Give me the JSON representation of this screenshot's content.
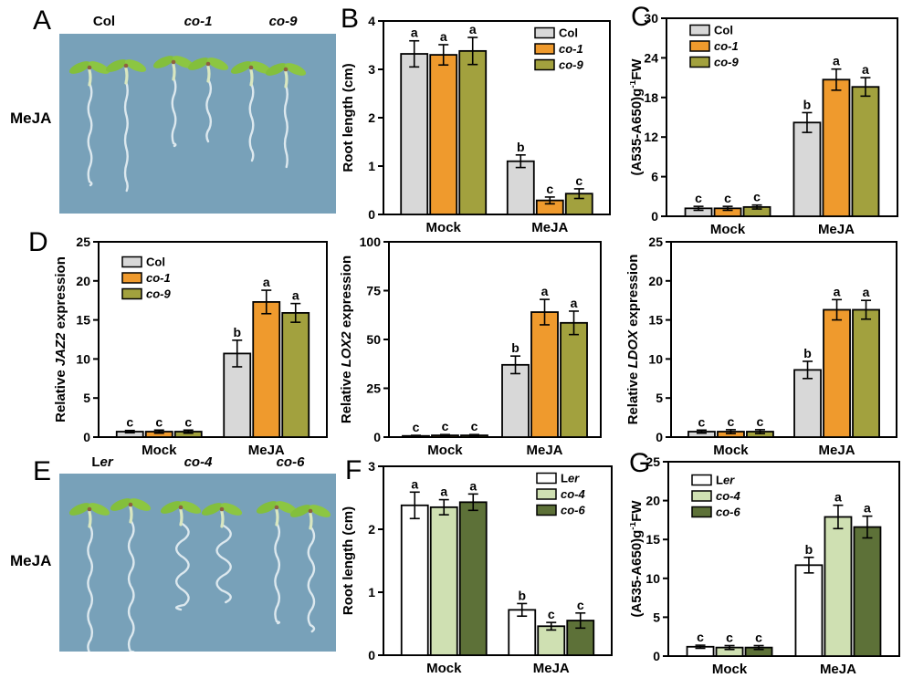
{
  "panels": {
    "A": {
      "letter": "A",
      "treatment": "MeJA",
      "genotypes": [
        [
          {
            "t": "Col"
          }
        ],
        [
          {
            "t": "co-1",
            "i": true
          }
        ],
        [
          {
            "t": "co-9",
            "i": true
          }
        ]
      ]
    },
    "B": {
      "letter": "B"
    },
    "C": {
      "letter": "C"
    },
    "D": {
      "letter": "D"
    },
    "E": {
      "letter": "E",
      "treatment": "MeJA",
      "genotypes": [
        [
          {
            "t": "L"
          },
          {
            "t": "er",
            "i": true
          }
        ],
        [
          {
            "t": "co-4",
            "i": true
          }
        ],
        [
          {
            "t": "co-6",
            "i": true
          }
        ]
      ]
    },
    "F": {
      "letter": "F"
    },
    "G": {
      "letter": "G"
    }
  },
  "colors": {
    "col": "#d8d8d8",
    "co1": "#ef9a2d",
    "co9": "#a2a13e",
    "ler": "#ffffff",
    "co4": "#cfe0b2",
    "co6": "#5d7138",
    "photo_bg": "#78a1b9",
    "axis": "#000000"
  },
  "chart_data": [
    {
      "id": "B",
      "type": "bar",
      "ylabel_text": "Root length (cm)",
      "ylabel_parts": [
        {
          "t": "Root length (cm)"
        }
      ],
      "ylim": [
        0,
        4
      ],
      "yticks": [
        0,
        1,
        2,
        3,
        4
      ],
      "categories": [
        "Mock",
        "MeJA"
      ],
      "legend": {
        "show": true,
        "pos": "tr"
      },
      "series": [
        {
          "name": "Col",
          "name_parts": [
            {
              "t": "Col"
            }
          ],
          "color": "#d8d8d8",
          "values": [
            3.32,
            1.1
          ],
          "errors": [
            0.27,
            0.13
          ],
          "letters": [
            "a",
            "b"
          ]
        },
        {
          "name": "co-1",
          "name_parts": [
            {
              "t": "co-1",
              "i": true
            }
          ],
          "color": "#ef9a2d",
          "values": [
            3.3,
            0.29
          ],
          "errors": [
            0.21,
            0.07
          ],
          "letters": [
            "a",
            "c"
          ]
        },
        {
          "name": "co-9",
          "name_parts": [
            {
              "t": "co-9",
              "i": true
            }
          ],
          "color": "#a2a13e",
          "values": [
            3.38,
            0.43
          ],
          "errors": [
            0.28,
            0.1
          ],
          "letters": [
            "a",
            "c"
          ]
        }
      ]
    },
    {
      "id": "C",
      "type": "bar",
      "ylabel_text": "(A535-A650)g-1FW",
      "ylabel_parts": [
        {
          "t": "(A535-A650)g"
        },
        {
          "t": "-1",
          "sup": true
        },
        {
          "t": "FW"
        }
      ],
      "ylim": [
        0,
        30
      ],
      "yticks": [
        0,
        6,
        12,
        18,
        24,
        30
      ],
      "categories": [
        "Mock",
        "MeJA"
      ],
      "legend": {
        "show": true,
        "pos": "tl"
      },
      "series": [
        {
          "name": "Col",
          "name_parts": [
            {
              "t": "Col"
            }
          ],
          "color": "#d8d8d8",
          "values": [
            1.2,
            14.2
          ],
          "errors": [
            0.3,
            1.5
          ],
          "letters": [
            "c",
            "b"
          ]
        },
        {
          "name": "co-1",
          "name_parts": [
            {
              "t": "co-1",
              "i": true
            }
          ],
          "color": "#ef9a2d",
          "values": [
            1.2,
            20.7
          ],
          "errors": [
            0.3,
            1.6
          ],
          "letters": [
            "c",
            "a"
          ]
        },
        {
          "name": "co-9",
          "name_parts": [
            {
              "t": "co-9",
              "i": true
            }
          ],
          "color": "#a2a13e",
          "values": [
            1.4,
            19.6
          ],
          "errors": [
            0.3,
            1.4
          ],
          "letters": [
            "c",
            "a"
          ]
        }
      ]
    },
    {
      "id": "D_JAZ2",
      "type": "bar",
      "ylabel_text": "Relative JAZ2 expression",
      "ylabel_parts": [
        {
          "t": "Relative "
        },
        {
          "t": "JAZ2",
          "i": true
        },
        {
          "t": " expression"
        }
      ],
      "ylim": [
        0,
        25
      ],
      "yticks": [
        0,
        5,
        10,
        15,
        20,
        25
      ],
      "categories": [
        "Mock",
        "MeJA"
      ],
      "legend": {
        "show": true,
        "pos": "tl"
      },
      "series": [
        {
          "name": "Col",
          "name_parts": [
            {
              "t": "Col"
            }
          ],
          "color": "#d8d8d8",
          "values": [
            0.7,
            10.7
          ],
          "errors": [
            0.15,
            1.7
          ],
          "letters": [
            "c",
            "b"
          ]
        },
        {
          "name": "co-1",
          "name_parts": [
            {
              "t": "co-1",
              "i": true
            }
          ],
          "color": "#ef9a2d",
          "values": [
            0.7,
            17.3
          ],
          "errors": [
            0.2,
            1.5
          ],
          "letters": [
            "c",
            "a"
          ]
        },
        {
          "name": "co-9",
          "name_parts": [
            {
              "t": "co-9",
              "i": true
            }
          ],
          "color": "#a2a13e",
          "values": [
            0.7,
            15.9
          ],
          "errors": [
            0.2,
            1.2
          ],
          "letters": [
            "c",
            "a"
          ]
        }
      ]
    },
    {
      "id": "D_LOX2",
      "type": "bar",
      "ylabel_text": "Relative LOX2 expression",
      "ylabel_parts": [
        {
          "t": "Relative "
        },
        {
          "t": "LOX2",
          "i": true
        },
        {
          "t": " expression"
        }
      ],
      "ylim": [
        0,
        100
      ],
      "yticks": [
        0,
        25,
        50,
        75,
        100
      ],
      "categories": [
        "Mock",
        "MeJA"
      ],
      "legend": {
        "show": false
      },
      "series": [
        {
          "name": "Col",
          "name_parts": [
            {
              "t": "Col"
            }
          ],
          "color": "#d8d8d8",
          "values": [
            0.6,
            37.0
          ],
          "errors": [
            0.3,
            4.5
          ],
          "letters": [
            "c",
            "b"
          ]
        },
        {
          "name": "co-1",
          "name_parts": [
            {
              "t": "co-1",
              "i": true
            }
          ],
          "color": "#ef9a2d",
          "values": [
            0.9,
            64.0
          ],
          "errors": [
            0.4,
            6.5
          ],
          "letters": [
            "c",
            "a"
          ]
        },
        {
          "name": "co-9",
          "name_parts": [
            {
              "t": "co-9",
              "i": true
            }
          ],
          "color": "#a2a13e",
          "values": [
            0.9,
            58.5
          ],
          "errors": [
            0.4,
            6.0
          ],
          "letters": [
            "c",
            "a"
          ]
        }
      ]
    },
    {
      "id": "D_LDOX",
      "type": "bar",
      "ylabel_text": "Relative LDOX expression",
      "ylabel_parts": [
        {
          "t": "Relative "
        },
        {
          "t": "LDOX",
          "i": true
        },
        {
          "t": " expression"
        }
      ],
      "ylim": [
        0,
        25
      ],
      "yticks": [
        0,
        5,
        10,
        15,
        20,
        25
      ],
      "categories": [
        "Mock",
        "MeJA"
      ],
      "legend": {
        "show": false
      },
      "series": [
        {
          "name": "Col",
          "name_parts": [
            {
              "t": "Col"
            }
          ],
          "color": "#d8d8d8",
          "values": [
            0.7,
            8.6
          ],
          "errors": [
            0.2,
            1.1
          ],
          "letters": [
            "c",
            "b"
          ]
        },
        {
          "name": "co-1",
          "name_parts": [
            {
              "t": "co-1",
              "i": true
            }
          ],
          "color": "#ef9a2d",
          "values": [
            0.7,
            16.3
          ],
          "errors": [
            0.25,
            1.3
          ],
          "letters": [
            "c",
            "a"
          ]
        },
        {
          "name": "co-9",
          "name_parts": [
            {
              "t": "co-9",
              "i": true
            }
          ],
          "color": "#a2a13e",
          "values": [
            0.7,
            16.3
          ],
          "errors": [
            0.25,
            1.2
          ],
          "letters": [
            "c",
            "a"
          ]
        }
      ]
    },
    {
      "id": "F",
      "type": "bar",
      "ylabel_text": "Root length (cm)",
      "ylabel_parts": [
        {
          "t": "Root length (cm)"
        }
      ],
      "ylim": [
        0,
        3
      ],
      "yticks": [
        0,
        1,
        2,
        3
      ],
      "categories": [
        "Mock",
        "MeJA"
      ],
      "legend": {
        "show": true,
        "pos": "tr"
      },
      "series": [
        {
          "name": "Ler",
          "name_parts": [
            {
              "t": "L"
            },
            {
              "t": "er",
              "i": true
            }
          ],
          "color": "#ffffff",
          "values": [
            2.38,
            0.72
          ],
          "errors": [
            0.21,
            0.1
          ],
          "letters": [
            "a",
            "b"
          ]
        },
        {
          "name": "co-4",
          "name_parts": [
            {
              "t": "co-4",
              "i": true
            }
          ],
          "color": "#cfe0b2",
          "values": [
            2.35,
            0.46
          ],
          "errors": [
            0.12,
            0.06
          ],
          "letters": [
            "a",
            "c"
          ]
        },
        {
          "name": "co-6",
          "name_parts": [
            {
              "t": "co-6",
              "i": true
            }
          ],
          "color": "#5d7138",
          "values": [
            2.43,
            0.55
          ],
          "errors": [
            0.13,
            0.12
          ],
          "letters": [
            "a",
            "c"
          ]
        }
      ]
    },
    {
      "id": "G",
      "type": "bar",
      "ylabel_text": "(A535-A650)g-1FW",
      "ylabel_parts": [
        {
          "t": "(A535-A650)g"
        },
        {
          "t": "-1",
          "sup": true
        },
        {
          "t": "FW"
        }
      ],
      "ylim": [
        0,
        25
      ],
      "yticks": [
        0,
        5,
        10,
        15,
        20,
        25
      ],
      "categories": [
        "Mock",
        "MeJA"
      ],
      "legend": {
        "show": true,
        "pos": "tl"
      },
      "series": [
        {
          "name": "Ler",
          "name_parts": [
            {
              "t": "L"
            },
            {
              "t": "er",
              "i": true
            }
          ],
          "color": "#ffffff",
          "values": [
            1.2,
            11.7
          ],
          "errors": [
            0.2,
            1.0
          ],
          "letters": [
            "c",
            "b"
          ]
        },
        {
          "name": "co-4",
          "name_parts": [
            {
              "t": "co-4",
              "i": true
            }
          ],
          "color": "#cfe0b2",
          "values": [
            1.1,
            17.9
          ],
          "errors": [
            0.25,
            1.5
          ],
          "letters": [
            "c",
            "a"
          ]
        },
        {
          "name": "co-6",
          "name_parts": [
            {
              "t": "co-6",
              "i": true
            }
          ],
          "color": "#5d7138",
          "values": [
            1.1,
            16.6
          ],
          "errors": [
            0.25,
            1.4
          ],
          "letters": [
            "c",
            "a"
          ]
        }
      ]
    }
  ]
}
